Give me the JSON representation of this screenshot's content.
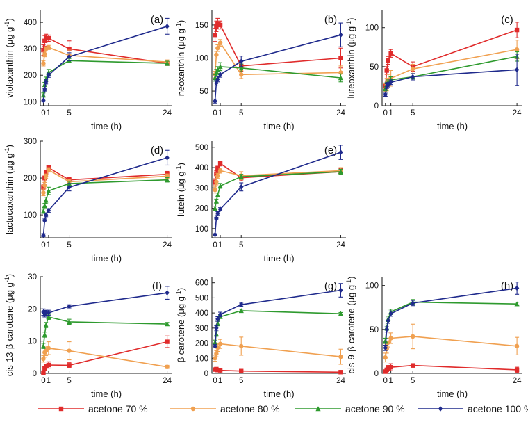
{
  "series_styles": [
    {
      "name": "acetone 70 %",
      "color": "#e02b2b",
      "marker": "square"
    },
    {
      "name": "acetone 80 %",
      "color": "#f0a050",
      "marker": "circle"
    },
    {
      "name": "acetone 90 %",
      "color": "#2e9a2e",
      "marker": "triangle"
    },
    {
      "name": "acetone 100 %",
      "color": "#1f2a8c",
      "marker": "diamond"
    }
  ],
  "legend": {
    "items": [
      "acetone 70 %",
      "acetone 80 %",
      "acetone 90 %",
      "acetone 100 %"
    ],
    "placement": "bottom"
  },
  "chart_data": [
    {
      "type": "line",
      "panel": "(a)",
      "xlabel": "time (h)",
      "ylabel": "violaxanthin (μg g-1)",
      "ylabel_main": "violaxanthin",
      "unit_base": "μg g",
      "unit_exp": "-1",
      "xticks": [
        0,
        1,
        5,
        24
      ],
      "xlim": [
        -0.6,
        25
      ],
      "ylim": [
        85,
        445
      ],
      "yticks": [
        100,
        200,
        300,
        400
      ],
      "series": [
        {
          "name": "acetone 70 %",
          "x": [
            0,
            0.25,
            0.5,
            1,
            5,
            24
          ],
          "y": [
            295,
            330,
            340,
            340,
            300,
            245
          ],
          "err": [
            20,
            20,
            15,
            12,
            30,
            8
          ]
        },
        {
          "name": "acetone 80 %",
          "x": [
            0,
            0.25,
            0.5,
            1,
            5,
            24
          ],
          "y": [
            245,
            280,
            300,
            305,
            275,
            250
          ],
          "err": [
            10,
            10,
            8,
            8,
            20,
            8
          ]
        },
        {
          "name": "acetone 90 %",
          "x": [
            0,
            0.25,
            0.5,
            1,
            5,
            24
          ],
          "y": [
            125,
            165,
            185,
            210,
            255,
            245
          ],
          "err": [
            8,
            8,
            8,
            12,
            8,
            8
          ]
        },
        {
          "name": "acetone 100 %",
          "x": [
            0,
            0.25,
            0.5,
            1,
            5,
            24
          ],
          "y": [
            105,
            145,
            175,
            200,
            270,
            385
          ],
          "err": [
            5,
            5,
            8,
            8,
            15,
            30
          ]
        }
      ]
    },
    {
      "type": "line",
      "panel": "(b)",
      "xlabel": "time (h)",
      "ylabel": "neoxanthin (μg g-1)",
      "ylabel_main": "neoxanthin",
      "unit_base": "μg g",
      "unit_exp": "-1",
      "xticks": [
        0,
        1,
        5,
        24
      ],
      "xlim": [
        -0.6,
        25
      ],
      "ylim": [
        28,
        172
      ],
      "yticks": [
        50,
        100,
        150
      ],
      "series": [
        {
          "name": "acetone 70 %",
          "x": [
            0,
            0.25,
            0.5,
            1,
            5,
            24
          ],
          "y": [
            135,
            148,
            152,
            150,
            88,
            100
          ],
          "err": [
            10,
            8,
            8,
            6,
            8,
            15
          ]
        },
        {
          "name": "acetone 80 %",
          "x": [
            0,
            0.25,
            0.5,
            1,
            5,
            24
          ],
          "y": [
            75,
            105,
            115,
            123,
            75,
            78
          ],
          "err": [
            5,
            5,
            5,
            5,
            6,
            10
          ]
        },
        {
          "name": "acetone 90 %",
          "x": [
            0,
            0.25,
            0.5,
            1,
            5,
            24
          ],
          "y": [
            70,
            78,
            82,
            87,
            85,
            70
          ],
          "err": [
            5,
            5,
            5,
            6,
            6,
            6
          ]
        },
        {
          "name": "acetone 100 %",
          "x": [
            0,
            0.25,
            0.5,
            1,
            5,
            24
          ],
          "y": [
            35,
            62,
            68,
            75,
            95,
            135
          ],
          "err": [
            3,
            4,
            4,
            4,
            8,
            18
          ]
        }
      ]
    },
    {
      "type": "line",
      "panel": "(c)",
      "xlabel": "time (h)",
      "ylabel": "luteoxanthin (μg g-1)",
      "ylabel_main": "luteoxanthin",
      "unit_base": "μg g",
      "unit_exp": "-1",
      "xticks": [
        0,
        1,
        5,
        24
      ],
      "xlim": [
        -0.6,
        25
      ],
      "ylim": [
        0,
        122
      ],
      "yticks": [
        0,
        50,
        100
      ],
      "series": [
        {
          "name": "acetone 70 %",
          "x": [
            0,
            0.25,
            0.5,
            1,
            5,
            24
          ],
          "y": [
            25,
            45,
            58,
            67,
            50,
            97
          ],
          "err": [
            4,
            5,
            5,
            5,
            6,
            10
          ]
        },
        {
          "name": "acetone 80 %",
          "x": [
            0,
            0.25,
            0.5,
            1,
            5,
            24
          ],
          "y": [
            20,
            27,
            32,
            35,
            47,
            72
          ],
          "err": [
            8,
            8,
            8,
            10,
            6,
            12
          ]
        },
        {
          "name": "acetone 90 %",
          "x": [
            0,
            0.25,
            0.5,
            1,
            5,
            24
          ],
          "y": [
            22,
            27,
            30,
            33,
            37,
            63
          ],
          "err": [
            3,
            3,
            3,
            4,
            4,
            6
          ]
        },
        {
          "name": "acetone 100 %",
          "x": [
            0,
            0.25,
            0.5,
            1,
            5,
            24
          ],
          "y": [
            14,
            25,
            27,
            30,
            37,
            46
          ],
          "err": [
            2,
            3,
            3,
            3,
            4,
            20
          ]
        }
      ]
    },
    {
      "type": "line",
      "panel": "(d)",
      "xlabel": "time (h)",
      "ylabel": "lactucaxanthin (μg g-1)",
      "ylabel_main": "lactucaxanthin",
      "unit_base": "μg g",
      "unit_exp": "-1",
      "xticks": [
        0,
        1,
        5,
        24
      ],
      "xlim": [
        -0.6,
        25
      ],
      "ylim": [
        38,
        300
      ],
      "yticks": [
        100,
        200,
        300
      ],
      "series": [
        {
          "name": "acetone 70 %",
          "x": [
            0,
            0.25,
            0.5,
            1,
            5,
            24
          ],
          "y": [
            175,
            200,
            215,
            228,
            195,
            210
          ],
          "err": [
            8,
            8,
            6,
            6,
            6,
            8
          ]
        },
        {
          "name": "acetone 80 %",
          "x": [
            0,
            0.25,
            0.5,
            1,
            5,
            24
          ],
          "y": [
            160,
            180,
            205,
            222,
            190,
            205
          ],
          "err": [
            8,
            8,
            6,
            6,
            6,
            6
          ]
        },
        {
          "name": "acetone 90 %",
          "x": [
            0,
            0.25,
            0.5,
            1,
            5,
            24
          ],
          "y": [
            110,
            125,
            140,
            165,
            185,
            195
          ],
          "err": [
            6,
            6,
            8,
            10,
            6,
            6
          ]
        },
        {
          "name": "acetone 100 %",
          "x": [
            0,
            0.25,
            0.5,
            1,
            5,
            24
          ],
          "y": [
            45,
            85,
            100,
            112,
            175,
            255
          ],
          "err": [
            4,
            4,
            5,
            5,
            10,
            20
          ]
        }
      ]
    },
    {
      "type": "line",
      "panel": "(e)",
      "xlabel": "time (h)",
      "ylabel": "lutein (μg g-1)",
      "ylabel_main": "lutein",
      "unit_base": "μg g",
      "unit_exp": "-1",
      "xticks": [
        0,
        1,
        5,
        24
      ],
      "xlim": [
        -0.6,
        25
      ],
      "ylim": [
        55,
        530
      ],
      "yticks": [
        100,
        200,
        300,
        400,
        500
      ],
      "series": [
        {
          "name": "acetone 70 %",
          "x": [
            0,
            0.25,
            0.5,
            1,
            5,
            24
          ],
          "y": [
            330,
            370,
            395,
            420,
            350,
            380
          ],
          "err": [
            15,
            15,
            12,
            12,
            15,
            15
          ]
        },
        {
          "name": "acetone 80 %",
          "x": [
            0,
            0.25,
            0.5,
            1,
            5,
            24
          ],
          "y": [
            290,
            330,
            360,
            385,
            360,
            385
          ],
          "err": [
            15,
            15,
            12,
            12,
            20,
            15
          ]
        },
        {
          "name": "acetone 90 %",
          "x": [
            0,
            0.25,
            0.5,
            1,
            5,
            24
          ],
          "y": [
            200,
            235,
            265,
            310,
            355,
            380
          ],
          "err": [
            10,
            10,
            10,
            12,
            12,
            12
          ]
        },
        {
          "name": "acetone 100 %",
          "x": [
            0,
            0.25,
            0.5,
            1,
            5,
            24
          ],
          "y": [
            70,
            150,
            175,
            195,
            305,
            475
          ],
          "err": [
            5,
            6,
            8,
            8,
            20,
            35
          ]
        }
      ]
    },
    {
      "type": "line",
      "panel": "(f)",
      "xlabel": "time (h)",
      "ylabel": "cis-13-β-carotene (μg g-1)",
      "ylabel_main": "cis-13-β-carotene",
      "unit_base": "μg g",
      "unit_exp": "-1",
      "xticks": [
        0,
        1,
        5,
        24
      ],
      "xlim": [
        -0.6,
        25
      ],
      "ylim": [
        0,
        30
      ],
      "yticks": [
        0,
        10,
        20,
        30
      ],
      "series": [
        {
          "name": "acetone 70 %",
          "x": [
            0,
            0.25,
            0.5,
            1,
            5,
            24
          ],
          "y": [
            0.2,
            1.5,
            2.2,
            2.6,
            2.5,
            9.8
          ],
          "err": [
            0.3,
            0.5,
            0.6,
            1.0,
            0.8,
            1.8
          ]
        },
        {
          "name": "acetone 80 %",
          "x": [
            0,
            0.25,
            0.5,
            1,
            5,
            24
          ],
          "y": [
            4.5,
            6.5,
            7.0,
            7.8,
            7.0,
            2.0
          ],
          "err": [
            1.0,
            1.5,
            1.5,
            2.0,
            2.8,
            0.5
          ]
        },
        {
          "name": "acetone 90 %",
          "x": [
            0,
            0.25,
            0.5,
            1,
            5,
            24
          ],
          "y": [
            8.5,
            12.0,
            15.0,
            17.5,
            16.0,
            15.3
          ],
          "err": [
            0.8,
            0.8,
            0.8,
            0.8,
            0.8,
            0.5
          ]
        },
        {
          "name": "acetone 100 %",
          "x": [
            0,
            0.25,
            0.5,
            1,
            5,
            24
          ],
          "y": [
            19.0,
            18.5,
            18.8,
            18.8,
            20.8,
            25.0
          ],
          "err": [
            1.0,
            1.0,
            0.8,
            0.8,
            0.5,
            2.0
          ]
        }
      ]
    },
    {
      "type": "line",
      "panel": "(g)",
      "xlabel": "time (h)",
      "ylabel": "β carotene (μg g-1)",
      "ylabel_main": "β carotene",
      "unit_base": "μg g",
      "unit_exp": "-1",
      "xticks": [
        0,
        1,
        5,
        24
      ],
      "xlim": [
        -0.6,
        25
      ],
      "ylim": [
        0,
        640
      ],
      "yticks": [
        0,
        100,
        200,
        300,
        400,
        500,
        600
      ],
      "series": [
        {
          "name": "acetone 70 %",
          "x": [
            0,
            0.25,
            0.5,
            1,
            5,
            24
          ],
          "y": [
            25,
            28,
            22,
            20,
            15,
            8
          ],
          "err": [
            5,
            5,
            5,
            5,
            4,
            4
          ]
        },
        {
          "name": "acetone 80 %",
          "x": [
            0,
            0.25,
            0.5,
            1,
            5,
            24
          ],
          "y": [
            100,
            130,
            170,
            195,
            180,
            110
          ],
          "err": [
            20,
            20,
            25,
            30,
            60,
            50
          ]
        },
        {
          "name": "acetone 90 %",
          "x": [
            0,
            0.25,
            0.5,
            1,
            5,
            24
          ],
          "y": [
            205,
            260,
            330,
            375,
            415,
            395
          ],
          "err": [
            15,
            15,
            15,
            10,
            10,
            8
          ]
        },
        {
          "name": "acetone 100 %",
          "x": [
            0,
            0.25,
            0.5,
            1,
            5,
            24
          ],
          "y": [
            180,
            300,
            360,
            390,
            455,
            550
          ],
          "err": [
            10,
            15,
            15,
            15,
            10,
            45
          ]
        }
      ]
    },
    {
      "type": "line",
      "panel": "(h)",
      "xlabel": "time (h)",
      "ylabel": "cis-9-β-carotene (μg g-1)",
      "ylabel_main": "cis-9-β-carotene",
      "unit_base": "μg g",
      "unit_exp": "-1",
      "xticks": [
        0,
        1,
        5,
        24
      ],
      "xlim": [
        -0.6,
        25
      ],
      "ylim": [
        0,
        110
      ],
      "yticks": [
        0,
        50,
        100
      ],
      "series": [
        {
          "name": "acetone 70 %",
          "x": [
            0,
            0.25,
            0.5,
            1,
            5,
            24
          ],
          "y": [
            2,
            4,
            6,
            7,
            9,
            4
          ],
          "err": [
            2,
            2,
            3,
            4,
            2,
            3
          ]
        },
        {
          "name": "acetone 80 %",
          "x": [
            0,
            0.25,
            0.5,
            1,
            5,
            24
          ],
          "y": [
            18,
            28,
            35,
            40,
            42,
            31
          ],
          "err": [
            5,
            5,
            5,
            6,
            14,
            10
          ]
        },
        {
          "name": "acetone 90 %",
          "x": [
            0,
            0.25,
            0.5,
            1,
            5,
            24
          ],
          "y": [
            37,
            52,
            62,
            70,
            81,
            79
          ],
          "err": [
            3,
            3,
            3,
            3,
            3,
            2
          ]
        },
        {
          "name": "acetone 100 %",
          "x": [
            0,
            0.25,
            0.5,
            1,
            5,
            24
          ],
          "y": [
            29,
            50,
            60,
            68,
            80,
            97
          ],
          "err": [
            3,
            3,
            3,
            3,
            3,
            7
          ]
        }
      ]
    }
  ]
}
